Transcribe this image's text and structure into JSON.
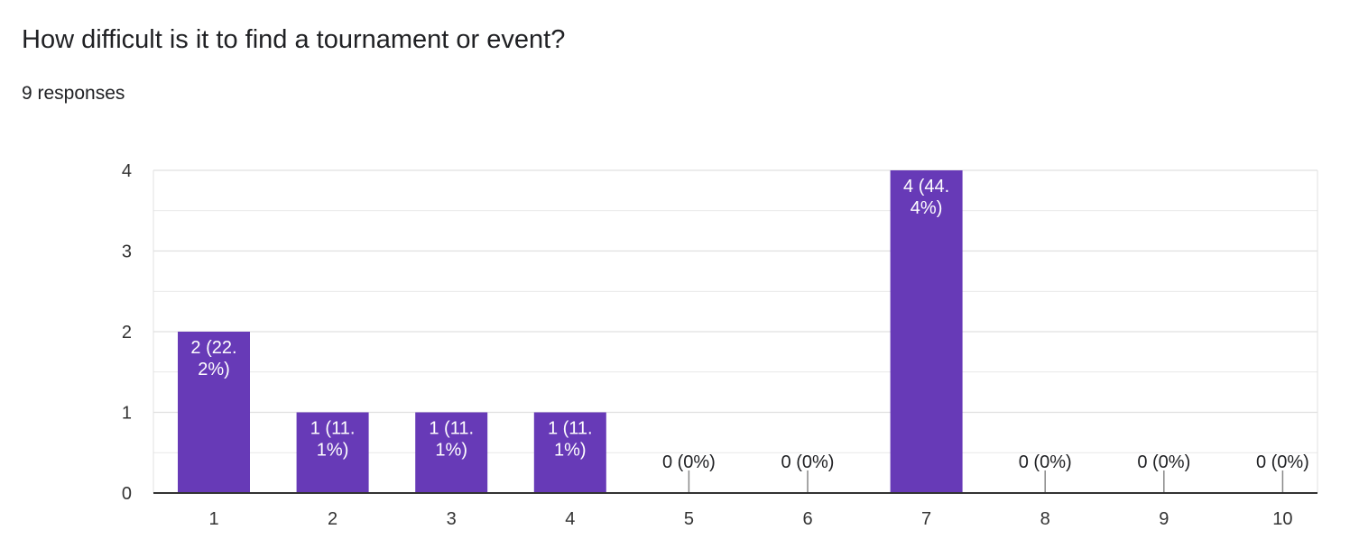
{
  "question": {
    "title": "How difficult is it to find a tournament or event?",
    "responses": "9 responses"
  },
  "colors": {
    "bar": "#673ab7",
    "bar_label_inside": "#ffffff",
    "bar_label_outside": "#202124",
    "gridline": "#e0e0e0",
    "axis": "#333333"
  },
  "chart_data": {
    "type": "bar",
    "title": "How difficult is it to find a tournament or event?",
    "xlabel": "",
    "ylabel": "",
    "categories": [
      "1",
      "2",
      "3",
      "4",
      "5",
      "6",
      "7",
      "8",
      "9",
      "10"
    ],
    "values": [
      2,
      1,
      1,
      1,
      0,
      0,
      4,
      0,
      0,
      0
    ],
    "data_labels": [
      [
        "2 (22.",
        "2%)"
      ],
      [
        "1 (11.",
        "1%)"
      ],
      [
        "1 (11.",
        "1%)"
      ],
      [
        "1 (11.",
        "1%)"
      ],
      [
        "0 (0%)"
      ],
      [
        "0 (0%)"
      ],
      [
        "4 (44.",
        "4%)"
      ],
      [
        "0 (0%)"
      ],
      [
        "0 (0%)"
      ],
      [
        "0 (0%)"
      ]
    ],
    "y_ticks": [
      "0",
      "1",
      "2",
      "3",
      "4"
    ],
    "ylim": [
      0,
      4
    ],
    "grid": true,
    "legend": "none"
  }
}
